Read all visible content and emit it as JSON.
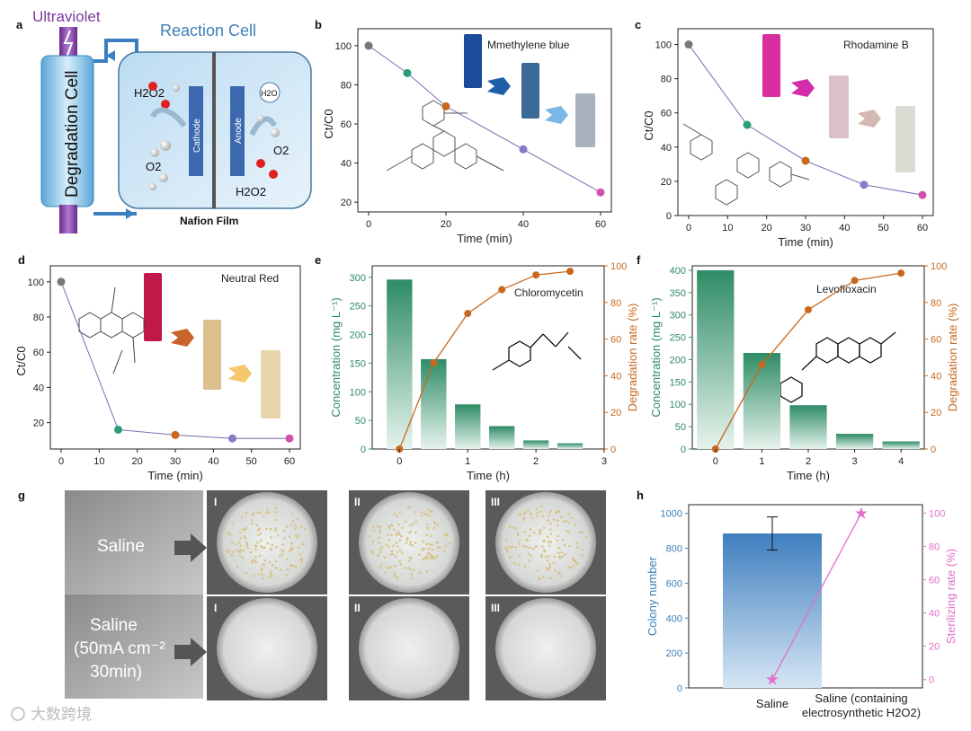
{
  "colors": {
    "line": "#7b6cb0",
    "teal": "#2a9d78",
    "orange": "#c8691f",
    "pink": "#e070c8",
    "blue_bar": "#4a86c0",
    "green_bar": "#2e8c66"
  },
  "panel_labels": [
    "a",
    "b",
    "c",
    "d",
    "e",
    "f",
    "g",
    "h"
  ],
  "panel_a": {
    "ultraviolet": "Ultraviolet",
    "reaction_cell": "Reaction Cell",
    "degradation_cell": "Degradation Cell",
    "cathode": "Cathode",
    "anode": "Anode",
    "h2o2_top": "H2O2",
    "o2_left": "O2",
    "h2o": "H2O",
    "o2_right": "O2",
    "h2o2_bottom": "H2O2",
    "nafion": "Nafion Film"
  },
  "panel_b_caption": "Mmethylene blue",
  "panel_c_caption": "Rhodamine B",
  "panel_d_caption": "Neutral Red",
  "panel_e_caption": "Chloromycetin",
  "panel_f_caption": "Levofloxacin",
  "panel_g": {
    "row1_label": "Saline",
    "row2_label_line1": "Saline",
    "row2_label_line2": "(50mA cm⁻²",
    "row2_label_line3": "30min)",
    "roman": [
      "I",
      "II",
      "III",
      "I",
      "II",
      "III"
    ]
  },
  "chart_data": [
    {
      "id": "b",
      "type": "line",
      "title": "Mmethylene blue",
      "xlabel": "Time (min)",
      "ylabel": "Ct/C0",
      "x": [
        0,
        10,
        20,
        40,
        60
      ],
      "y": [
        100,
        86,
        69,
        47,
        25
      ],
      "xlim": [
        0,
        60
      ],
      "ylim": [
        15,
        105
      ],
      "xticks": [
        0,
        20,
        40,
        60
      ],
      "yticks": [
        20,
        40,
        60,
        80,
        100
      ]
    },
    {
      "id": "c",
      "type": "line",
      "title": "Rhodamine B",
      "xlabel": "Time (min)",
      "ylabel": "Ct/C0",
      "x": [
        0,
        15,
        30,
        45,
        60
      ],
      "y": [
        100,
        53,
        32,
        18,
        12
      ],
      "xlim": [
        0,
        60
      ],
      "ylim": [
        0,
        105
      ],
      "xticks": [
        0,
        10,
        20,
        30,
        40,
        50,
        60
      ],
      "yticks": [
        0,
        20,
        40,
        60,
        80,
        100
      ]
    },
    {
      "id": "d",
      "type": "line",
      "title": "Neutral Red",
      "xlabel": "Time (min)",
      "ylabel": "Ct/C0",
      "x": [
        0,
        15,
        30,
        45,
        60
      ],
      "y": [
        100,
        16,
        13,
        11,
        11
      ],
      "xlim": [
        0,
        60
      ],
      "ylim": [
        5,
        105
      ],
      "xticks": [
        0,
        10,
        20,
        30,
        40,
        50,
        60
      ],
      "yticks": [
        20,
        40,
        60,
        80,
        100
      ]
    },
    {
      "id": "e",
      "type": "bar+line",
      "title": "Chloromycetin",
      "xlabel": "Time (h)",
      "ylabel": "Concentration (mg L⁻¹)",
      "y2label": "Degradation rate (%)",
      "bars": {
        "x": [
          0,
          0.5,
          1,
          1.5,
          2,
          2.5
        ],
        "values": [
          296,
          157,
          78,
          40,
          15,
          10
        ]
      },
      "line": {
        "x": [
          0,
          0.5,
          1,
          1.5,
          2,
          2.5
        ],
        "values": [
          0,
          47,
          74,
          87,
          95,
          97
        ]
      },
      "xlim": [
        -0.4,
        3
      ],
      "ylim": [
        0,
        320
      ],
      "y2lim": [
        0,
        100
      ],
      "xticks": [
        0,
        1,
        2,
        3
      ],
      "yticks": [
        0,
        50,
        100,
        150,
        200,
        250,
        300
      ],
      "y2ticks": [
        0,
        20,
        40,
        60,
        80,
        100
      ]
    },
    {
      "id": "f",
      "type": "bar+line",
      "title": "Levofloxacin",
      "xlabel": "Time (h)",
      "ylabel": "Concentration (mg L⁻¹)",
      "y2label": "Degradation rate (%)",
      "bars": {
        "x": [
          0,
          1,
          2,
          3,
          4
        ],
        "values": [
          400,
          215,
          98,
          34,
          17
        ]
      },
      "line": {
        "x": [
          0,
          1,
          2,
          3,
          4
        ],
        "values": [
          0,
          46,
          76,
          92,
          96
        ]
      },
      "xlim": [
        -0.5,
        4.5
      ],
      "ylim": [
        0,
        410
      ],
      "y2lim": [
        0,
        100
      ],
      "xticks": [
        0,
        1,
        2,
        3,
        4
      ],
      "yticks": [
        0,
        50,
        100,
        150,
        200,
        250,
        300,
        350,
        400
      ],
      "y2ticks": [
        0,
        20,
        40,
        60,
        80,
        100
      ]
    },
    {
      "id": "h",
      "type": "bar+line",
      "title": "",
      "xlabel": "",
      "ylabel": "Colony number",
      "y2label": "Sterilizing rate (%)",
      "categories": [
        "Saline",
        "Saline (containing",
        "electrosynthetic H2O2)"
      ],
      "bars": {
        "values": [
          885
        ],
        "error": [
          95
        ]
      },
      "line": {
        "values": [
          0,
          100
        ]
      },
      "ylim": [
        0,
        1050
      ],
      "y2lim": [
        -5,
        105
      ],
      "yticks": [
        0,
        200,
        400,
        600,
        800,
        1000
      ],
      "y2ticks": [
        0,
        20,
        40,
        60,
        80,
        100
      ]
    }
  ],
  "watermark": "大数跨境"
}
